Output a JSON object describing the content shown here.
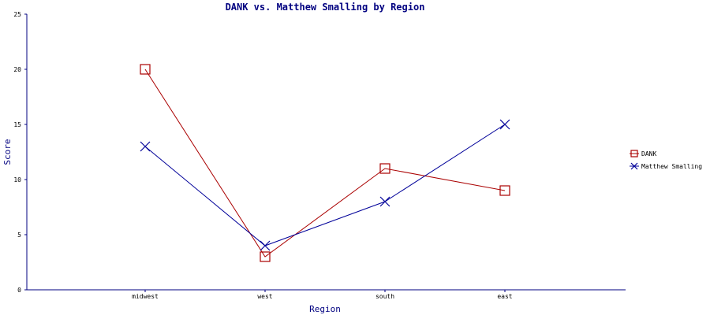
{
  "chart_data": {
    "type": "line",
    "title": "DANK vs. Matthew Smalling by Region",
    "xlabel": "Region",
    "ylabel": "Score",
    "categories": [
      "midwest",
      "west",
      "south",
      "east"
    ],
    "ylim": [
      0,
      25
    ],
    "yticks": [
      0,
      5,
      10,
      15,
      20,
      25
    ],
    "grid": false,
    "legend_position": "right",
    "series": [
      {
        "name": "DANK",
        "values": [
          20,
          3,
          11,
          9
        ],
        "color": "#aa0000",
        "marker": "square"
      },
      {
        "name": "Matthew Smalling",
        "values": [
          13,
          4,
          8,
          15
        ],
        "color": "#000099",
        "marker": "x"
      }
    ]
  }
}
